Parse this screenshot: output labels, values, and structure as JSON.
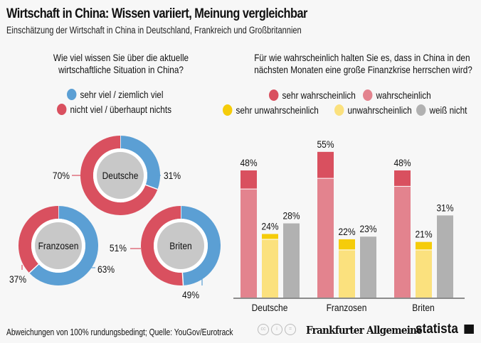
{
  "header": {
    "title": "Wirtschaft in China: Wissen variiert, Meinung vergleichbar",
    "subtitle": "Einschätzung der Wirtschaft in China in Deutschland, Frankreich und Großbritannien"
  },
  "footer": {
    "note": "Abweichungen von 100% rundungsbedingt;  Quelle: YouGov/Eurotrack",
    "brand1": "Frankfurter Allgemeine",
    "brand2": "statista",
    "cc_icons": [
      "cc-icon",
      "by-icon",
      "nd-icon"
    ]
  },
  "chart_data": [
    {
      "type": "pie",
      "variant": "donut",
      "title": "Wie viel wissen Sie über die aktuelle wirtschaftliche Situation in China?",
      "title_lines": [
        "Wie viel wissen Sie über die aktuelle",
        "wirtschaftliche Situation in China?"
      ],
      "legend": [
        {
          "label": "sehr viel / ziemlich viel",
          "color": "#5b9fd4"
        },
        {
          "label": "nicht viel / überhaupt nichts",
          "color": "#d9505f"
        }
      ],
      "donuts": [
        {
          "name": "Deutsche",
          "values": [
            31,
            70
          ],
          "labels": [
            "31%",
            "70%"
          ]
        },
        {
          "name": "Franzosen",
          "values": [
            63,
            37
          ],
          "labels": [
            "63%",
            "37%"
          ]
        },
        {
          "name": "Briten",
          "values": [
            49,
            51
          ],
          "labels": [
            "49%",
            "51%"
          ]
        }
      ]
    },
    {
      "type": "bar",
      "title": "Für wie wahrscheinlich halten Sie es, dass in China in den nächsten Monaten eine große Finanzkrise herrschen wird?",
      "title_lines": [
        "Für wie wahrscheinlich halten Sie es, dass in China in den",
        "nächsten Monaten eine große Finanzkrise herrschen wird?"
      ],
      "categories": [
        "Deutsche",
        "Franzosen",
        "Briten"
      ],
      "legend": [
        {
          "label": "sehr wahrscheinlich",
          "color": "#d9505f"
        },
        {
          "label": "wahrscheinlich",
          "color": "#e3838e"
        },
        {
          "label": "sehr unwahrscheinlich",
          "color": "#f5cc0a"
        },
        {
          "label": "unwahrscheinlich",
          "color": "#fbe17e"
        },
        {
          "label": "weiß nicht",
          "color": "#b1b1b1"
        }
      ],
      "series": [
        {
          "name": "sehr wahrscheinlich",
          "values": [
            7,
            10,
            6
          ]
        },
        {
          "name": "wahrscheinlich",
          "values": [
            41,
            45,
            42
          ]
        },
        {
          "name": "sehr unwahrscheinlich",
          "values": [
            2,
            4,
            3
          ]
        },
        {
          "name": "unwahrscheinlich",
          "values": [
            22,
            18,
            18
          ]
        },
        {
          "name": "weiß nicht",
          "values": [
            28,
            23,
            31
          ]
        }
      ],
      "stack_groups": [
        [
          "sehr wahrscheinlich",
          "wahrscheinlich"
        ],
        [
          "sehr unwahrscheinlich",
          "unwahrscheinlich"
        ],
        [
          "weiß nicht"
        ]
      ],
      "totals": [
        [
          "48%",
          "24%",
          "28%"
        ],
        [
          "55%",
          "22%",
          "23%"
        ],
        [
          "48%",
          "21%",
          "31%"
        ]
      ],
      "ylim": [
        0,
        60
      ]
    }
  ]
}
